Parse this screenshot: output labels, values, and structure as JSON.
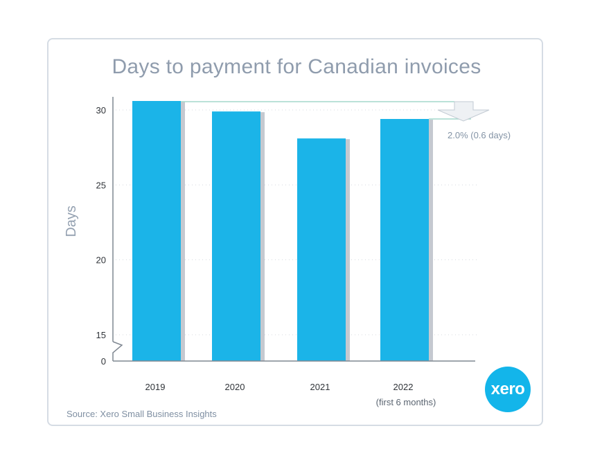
{
  "chart_data": {
    "type": "bar",
    "title": "Days to payment for Canadian invoices",
    "ylabel": "Days",
    "categories": [
      "2019",
      "2020",
      "2021",
      "2022"
    ],
    "category_sublabels": [
      "",
      "",
      "",
      "(first 6 months)"
    ],
    "values": [
      30.6,
      29.9,
      28.1,
      29.4
    ],
    "yticks": [
      0,
      15,
      20,
      25,
      30
    ],
    "ylim": [
      15,
      31
    ],
    "axis_break": true,
    "annotation": "2.0% (0.6 days)",
    "bar_color": "#1bb4e8",
    "shadow_color": "#c5c9d0"
  },
  "source": "Source: Xero Small Business Insights",
  "logo": {
    "text": "xero",
    "color": "#13b5ea"
  }
}
